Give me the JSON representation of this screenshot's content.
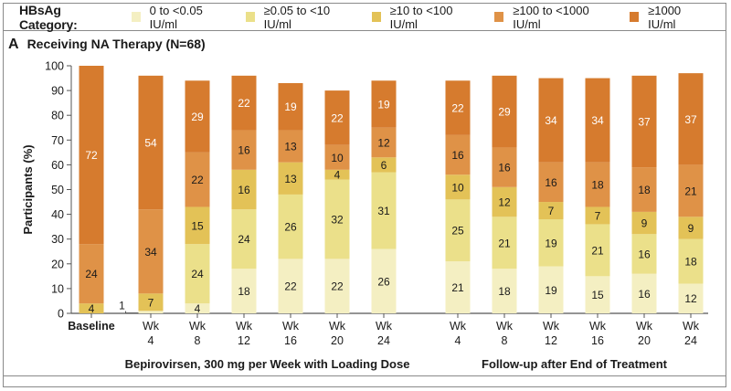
{
  "legend": {
    "title": "HBsAg Category:",
    "items": [
      {
        "label": "0 to <0.05 IU/ml",
        "color": "#f4efc2"
      },
      {
        "label": "≥0.05 to <10 IU/ml",
        "color": "#ebe08a"
      },
      {
        "label": "≥10 to <100 IU/ml",
        "color": "#e3c257"
      },
      {
        "label": "≥100 to <1000 IU/ml",
        "color": "#df9247"
      },
      {
        "label": "≥1000 IU/ml",
        "color": "#d67b2e"
      }
    ]
  },
  "panel": {
    "letter": "A",
    "title": "Receiving NA Therapy (N=68)"
  },
  "chart_data": {
    "type": "bar",
    "stacked": true,
    "title": "Receiving NA Therapy (N=68)",
    "ylabel": "Participants (%)",
    "xlabel": "",
    "ylim": [
      0,
      100
    ],
    "yticks": [
      "0",
      "10",
      "20",
      "30",
      "40",
      "50",
      "60",
      "70",
      "80",
      "90",
      "100"
    ],
    "categories": [
      {
        "line1": "Baseline",
        "line2": "",
        "group": "baseline"
      },
      {
        "line1": "Wk",
        "line2": "4",
        "group": "treatment"
      },
      {
        "line1": "Wk",
        "line2": "8",
        "group": "treatment"
      },
      {
        "line1": "Wk",
        "line2": "12",
        "group": "treatment"
      },
      {
        "line1": "Wk",
        "line2": "16",
        "group": "treatment"
      },
      {
        "line1": "Wk",
        "line2": "20",
        "group": "treatment"
      },
      {
        "line1": "Wk",
        "line2": "24",
        "group": "treatment"
      },
      {
        "line1": "Wk",
        "line2": "4",
        "group": "followup"
      },
      {
        "line1": "Wk",
        "line2": "8",
        "group": "followup"
      },
      {
        "line1": "Wk",
        "line2": "12",
        "group": "followup"
      },
      {
        "line1": "Wk",
        "line2": "16",
        "group": "followup"
      },
      {
        "line1": "Wk",
        "line2": "20",
        "group": "followup"
      },
      {
        "line1": "Wk",
        "line2": "24",
        "group": "followup"
      }
    ],
    "groups": [
      {
        "id": "treatment",
        "label": "Bepirovirsen, 300 mg per Week with Loading Dose"
      },
      {
        "id": "followup",
        "label": "Follow-up after End of Treatment"
      }
    ],
    "series": [
      {
        "name": "0 to <0.05 IU/ml",
        "values": [
          0,
          1,
          4,
          18,
          22,
          22,
          26,
          21,
          18,
          19,
          15,
          16,
          12
        ]
      },
      {
        "name": "≥0.05 to <10 IU/ml",
        "values": [
          0,
          0,
          24,
          24,
          26,
          32,
          31,
          25,
          21,
          19,
          21,
          16,
          18
        ]
      },
      {
        "name": "≥10 to <100 IU/ml",
        "values": [
          4,
          7,
          15,
          16,
          13,
          4,
          6,
          10,
          12,
          7,
          7,
          9,
          9
        ]
      },
      {
        "name": "≥100 to <1000 IU/ml",
        "values": [
          24,
          34,
          22,
          16,
          13,
          10,
          12,
          16,
          16,
          16,
          18,
          18,
          21
        ]
      },
      {
        "name": "≥1000 IU/ml",
        "values": [
          72,
          54,
          29,
          22,
          19,
          22,
          19,
          22,
          29,
          34,
          34,
          37,
          37
        ]
      }
    ],
    "annotations": [
      {
        "category_index": 1,
        "series_index": 0,
        "text": "1",
        "placement": "left-callout"
      }
    ],
    "legend_position": "top",
    "grid": false
  }
}
